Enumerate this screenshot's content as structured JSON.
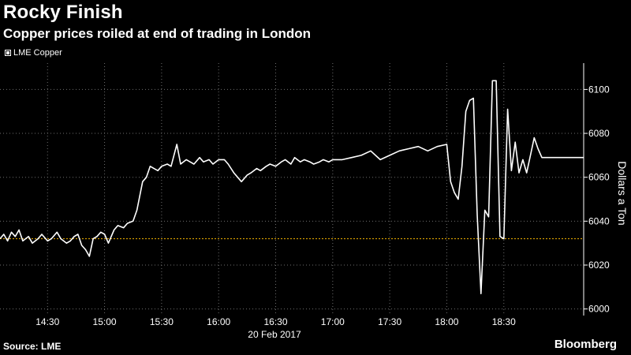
{
  "header": {
    "title": "Rocky Finish",
    "subtitle": "Copper prices roiled at end of trading in London"
  },
  "legend": {
    "label": "LME Copper"
  },
  "footer": {
    "source": "Source: LME",
    "brand": "Bloomberg"
  },
  "colors": {
    "background": "#000000",
    "line": "#ffffff",
    "reference_line": "#f5b400",
    "grid": "#6e6e6e"
  },
  "chart_data": {
    "type": "line",
    "title": "Rocky Finish",
    "subtitle": "Copper prices roiled at end of trading in London",
    "xlabel": "20 Feb 2017",
    "ylabel": "Dollars a Ton",
    "y_axis_side": "right",
    "ylim": [
      5997,
      6112
    ],
    "xlim": [
      "14:05",
      "19:12"
    ],
    "yticks": [
      6000,
      6020,
      6040,
      6060,
      6080,
      6100
    ],
    "xticks": [
      "14:30",
      "15:00",
      "15:30",
      "16:00",
      "16:30",
      "17:00",
      "17:30",
      "18:00",
      "18:30"
    ],
    "grid": true,
    "legend_position": "top-left",
    "reference_line": {
      "y": 6032,
      "style": "dotted"
    },
    "series": [
      {
        "name": "LME Copper",
        "x": [
          "14:05",
          "14:07",
          "14:09",
          "14:11",
          "14:13",
          "14:15",
          "14:17",
          "14:20",
          "14:22",
          "14:25",
          "14:27",
          "14:30",
          "14:32",
          "14:35",
          "14:37",
          "14:40",
          "14:42",
          "14:44",
          "14:46",
          "14:48",
          "14:50",
          "14:52",
          "14:54",
          "14:56",
          "14:58",
          "15:00",
          "15:02",
          "15:05",
          "15:07",
          "15:10",
          "15:12",
          "15:15",
          "15:17",
          "15:20",
          "15:22",
          "15:24",
          "15:26",
          "15:28",
          "15:30",
          "15:33",
          "15:35",
          "15:38",
          "15:40",
          "15:43",
          "15:45",
          "15:47",
          "15:50",
          "15:52",
          "15:55",
          "15:57",
          "16:00",
          "16:03",
          "16:05",
          "16:08",
          "16:10",
          "16:12",
          "16:15",
          "16:17",
          "16:20",
          "16:22",
          "16:25",
          "16:27",
          "16:30",
          "16:33",
          "16:35",
          "16:38",
          "16:40",
          "16:43",
          "16:45",
          "16:48",
          "16:50",
          "16:53",
          "16:55",
          "16:58",
          "17:00",
          "17:05",
          "17:10",
          "17:15",
          "17:20",
          "17:25",
          "17:30",
          "17:35",
          "17:40",
          "17:45",
          "17:50",
          "17:55",
          "18:00",
          "18:02",
          "18:04",
          "18:06",
          "18:08",
          "18:10",
          "18:12",
          "18:14",
          "18:16",
          "18:18",
          "18:20",
          "18:22",
          "18:24",
          "18:26",
          "18:28",
          "18:30",
          "18:32",
          "18:34",
          "18:36",
          "18:38",
          "18:40",
          "18:42",
          "18:44",
          "18:46",
          "18:48",
          "18:50",
          "18:55",
          "19:00",
          "19:05",
          "19:12"
        ],
        "values": [
          6032,
          6034,
          6031,
          6035,
          6033,
          6036,
          6031,
          6033,
          6030,
          6032,
          6034,
          6031,
          6032,
          6035,
          6032,
          6030,
          6031,
          6033,
          6034,
          6029,
          6027,
          6024,
          6032,
          6033,
          6035,
          6034,
          6030,
          6036,
          6038,
          6037,
          6039,
          6040,
          6045,
          6058,
          6060,
          6065,
          6064,
          6063,
          6065,
          6066,
          6065,
          6075,
          6066,
          6068,
          6067,
          6066,
          6069,
          6067,
          6068,
          6066,
          6068,
          6068,
          6066,
          6062,
          6060,
          6058,
          6061,
          6062,
          6064,
          6063,
          6065,
          6066,
          6065,
          6067,
          6068,
          6066,
          6069,
          6067,
          6068,
          6067,
          6066,
          6067,
          6068,
          6067,
          6068,
          6068,
          6069,
          6070,
          6072,
          6068,
          6070,
          6072,
          6073,
          6074,
          6072,
          6074,
          6075,
          6058,
          6053,
          6050,
          6065,
          6090,
          6095,
          6096,
          6043,
          6007,
          6045,
          6042,
          6104,
          6104,
          6033,
          6032,
          6091,
          6063,
          6076,
          6062,
          6068,
          6062,
          6070,
          6078,
          6073,
          6069,
          6069,
          6069,
          6069,
          6069
        ]
      }
    ]
  }
}
